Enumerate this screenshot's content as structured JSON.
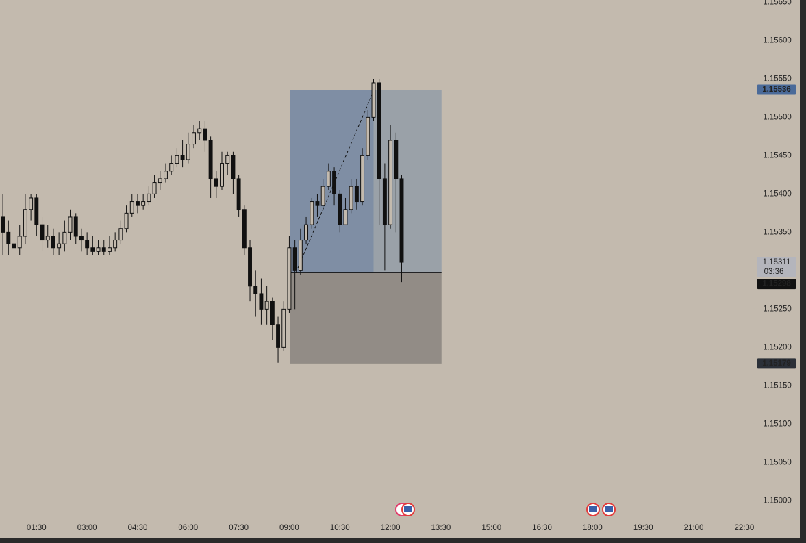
{
  "chart_data": {
    "type": "candlestick",
    "x": [
      30,
      40,
      50,
      60,
      70,
      80,
      90,
      100,
      110,
      120,
      130,
      140,
      150,
      160,
      170,
      180,
      190,
      200,
      210,
      220,
      230,
      240,
      250,
      260,
      270,
      280,
      290,
      300,
      310,
      320,
      330,
      340,
      350,
      360,
      370,
      380,
      390,
      400,
      410,
      420,
      430,
      440,
      450,
      460,
      470,
      480,
      490,
      500,
      510,
      520,
      530,
      540,
      550,
      560,
      570,
      580,
      590,
      600,
      610,
      620,
      630,
      640,
      650,
      660,
      670,
      680,
      690,
      700,
      710,
      720,
      730,
      740
    ],
    "open": [
      1.1537,
      1.1535,
      1.15335,
      1.1533,
      1.15345,
      1.1538,
      1.15395,
      1.1536,
      1.1534,
      1.15345,
      1.1533,
      1.15335,
      1.1535,
      1.1537,
      1.15345,
      1.1534,
      1.1533,
      1.15325,
      1.1533,
      1.15325,
      1.1533,
      1.1534,
      1.15355,
      1.15375,
      1.1539,
      1.15385,
      1.1539,
      1.154,
      1.15415,
      1.1542,
      1.1543,
      1.1544,
      1.1545,
      1.15445,
      1.15465,
      1.1548,
      1.15485,
      1.1547,
      1.1542,
      1.1541,
      1.1544,
      1.1545,
      1.1542,
      1.1538,
      1.1533,
      1.1528,
      1.1527,
      1.1525,
      1.1526,
      1.1523,
      1.152,
      1.1525,
      1.1533,
      1.153,
      1.1534,
      1.1536,
      1.1539,
      1.15385,
      1.1541,
      1.1543,
      1.154,
      1.1536,
      1.1538,
      1.1541,
      1.1539,
      1.1545,
      1.155,
      1.15545,
      1.1542,
      1.1536,
      1.1547,
      1.1542
    ],
    "high": [
      1.154,
      1.15365,
      1.1535,
      1.1536,
      1.154,
      1.154,
      1.154,
      1.1537,
      1.1536,
      1.15355,
      1.1535,
      1.15365,
      1.1538,
      1.15375,
      1.15355,
      1.1535,
      1.15345,
      1.1534,
      1.1534,
      1.15345,
      1.1535,
      1.15365,
      1.15385,
      1.154,
      1.154,
      1.154,
      1.1541,
      1.15425,
      1.1543,
      1.1544,
      1.1545,
      1.1546,
      1.1547,
      1.1548,
      1.1549,
      1.15495,
      1.15495,
      1.15475,
      1.1543,
      1.15455,
      1.15455,
      1.15455,
      1.15425,
      1.15385,
      1.1534,
      1.153,
      1.1529,
      1.1528,
      1.15265,
      1.1524,
      1.1526,
      1.15345,
      1.1534,
      1.15355,
      1.1537,
      1.15395,
      1.154,
      1.1542,
      1.1544,
      1.15435,
      1.15405,
      1.15395,
      1.1542,
      1.1542,
      1.1546,
      1.1551,
      1.1555,
      1.1555,
      1.1544,
      1.1549,
      1.1548,
      1.15425
    ],
    "low": [
      1.1532,
      1.1532,
      1.15315,
      1.1532,
      1.15335,
      1.15365,
      1.15345,
      1.15325,
      1.1533,
      1.1532,
      1.1532,
      1.15325,
      1.1534,
      1.15335,
      1.15325,
      1.1532,
      1.1532,
      1.1532,
      1.1532,
      1.1532,
      1.15325,
      1.15335,
      1.1535,
      1.1537,
      1.15375,
      1.1538,
      1.15385,
      1.15395,
      1.15405,
      1.15415,
      1.15425,
      1.15435,
      1.15435,
      1.1544,
      1.1546,
      1.1547,
      1.15455,
      1.15395,
      1.15395,
      1.15405,
      1.15425,
      1.154,
      1.1537,
      1.1532,
      1.1526,
      1.1524,
      1.1523,
      1.1523,
      1.1521,
      1.1518,
      1.15195,
      1.15245,
      1.1525,
      1.15295,
      1.15335,
      1.15355,
      1.1537,
      1.1538,
      1.15405,
      1.15385,
      1.1535,
      1.1536,
      1.15375,
      1.1538,
      1.15385,
      1.15445,
      1.15495,
      1.1536,
      1.153,
      1.15355,
      1.1535,
      1.15285
    ],
    "close": [
      1.1535,
      1.15335,
      1.1533,
      1.15345,
      1.1538,
      1.15395,
      1.1536,
      1.1534,
      1.15345,
      1.1533,
      1.15335,
      1.1535,
      1.1537,
      1.15345,
      1.1534,
      1.1533,
      1.15325,
      1.1533,
      1.15325,
      1.1533,
      1.1534,
      1.15355,
      1.15375,
      1.1539,
      1.15385,
      1.1539,
      1.154,
      1.15415,
      1.1542,
      1.1543,
      1.1544,
      1.1545,
      1.15445,
      1.15465,
      1.1548,
      1.15485,
      1.1547,
      1.1542,
      1.1541,
      1.1544,
      1.1545,
      1.1542,
      1.1538,
      1.1533,
      1.1528,
      1.1527,
      1.1525,
      1.1526,
      1.1523,
      1.152,
      1.1525,
      1.1533,
      1.153,
      1.1534,
      1.1536,
      1.1539,
      1.15385,
      1.1541,
      1.1543,
      1.154,
      1.1536,
      1.1538,
      1.1541,
      1.1539,
      1.1545,
      1.155,
      1.15545,
      1.1542,
      1.1536,
      1.1547,
      1.1542,
      1.15311
    ],
    "xlim": [
      25,
      1366
    ],
    "ylim": [
      1.14953,
      1.15653
    ],
    "xticks": [
      {
        "value": 90,
        "label": "01:30"
      },
      {
        "value": 180,
        "label": "03:00"
      },
      {
        "value": 270,
        "label": "04:30"
      },
      {
        "value": 360,
        "label": "06:00"
      },
      {
        "value": 450,
        "label": "07:30"
      },
      {
        "value": 540,
        "label": "09:00"
      },
      {
        "value": 630,
        "label": "10:30"
      },
      {
        "value": 720,
        "label": "12:00"
      },
      {
        "value": 810,
        "label": "13:30"
      },
      {
        "value": 900,
        "label": "15:00"
      },
      {
        "value": 990,
        "label": "16:30"
      },
      {
        "value": 1080,
        "label": "18:00"
      },
      {
        "value": 1170,
        "label": "19:30"
      },
      {
        "value": 1260,
        "label": "21:00"
      },
      {
        "value": 1350,
        "label": "22:30"
      }
    ],
    "yticks": [
      {
        "value": 1.15,
        "label": "1.15000"
      },
      {
        "value": 1.1505,
        "label": "1.15050"
      },
      {
        "value": 1.151,
        "label": "1.15100"
      },
      {
        "value": 1.1515,
        "label": "1.15150"
      },
      {
        "value": 1.152,
        "label": "1.15200"
      },
      {
        "value": 1.1525,
        "label": "1.15250"
      },
      {
        "value": 1.153,
        "label": "1.15300"
      },
      {
        "value": 1.1535,
        "label": "1.15350"
      },
      {
        "value": 1.154,
        "label": "1.15400"
      },
      {
        "value": 1.1545,
        "label": "1.15450"
      },
      {
        "value": 1.155,
        "label": "1.15500"
      },
      {
        "value": 1.1555,
        "label": "1.15550"
      },
      {
        "value": 1.156,
        "label": "1.15600"
      },
      {
        "value": 1.1565,
        "label": "1.15650"
      }
    ],
    "position": {
      "x": [
        541,
        811
      ],
      "target": 1.15536,
      "entry": 1.15298,
      "stop": 1.15179
    },
    "trend_line": {
      "x": [
        552,
        691
      ],
      "y": [
        1.15298,
        1.15536
      ]
    },
    "current_price": {
      "value": 1.15311,
      "countdown": "03:36"
    }
  }
}
